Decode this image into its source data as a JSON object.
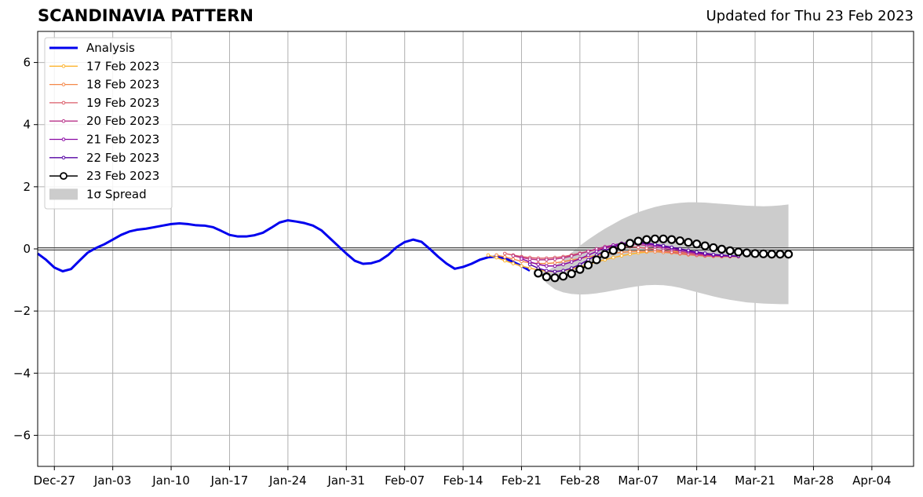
{
  "header": {
    "title": "SCANDINAVIA PATTERN",
    "updated": "Updated for Thu 23 Feb 2023"
  },
  "chart_data": {
    "type": "line",
    "title": "SCANDINAVIA PATTERN",
    "subtitle": "Updated for Thu 23 Feb 2023",
    "xlabel": "",
    "ylabel": "",
    "ylim": [
      -7,
      7
    ],
    "xlim": [
      "2022-12-25",
      "2023-04-09"
    ],
    "grid": true,
    "legend_position": "top-left",
    "x_ticks": [
      "Dec-27",
      "Jan-03",
      "Jan-10",
      "Jan-17",
      "Jan-24",
      "Jan-31",
      "Feb-07",
      "Feb-14",
      "Feb-21",
      "Feb-28",
      "Mar-07",
      "Mar-14",
      "Mar-21",
      "Mar-28",
      "Apr-04"
    ],
    "y_ticks": [
      "6",
      "4",
      "2",
      "0",
      "−2",
      "−4",
      "−6"
    ],
    "legend": [
      "Analysis",
      "17 Feb 2023",
      "18 Feb 2023",
      "19 Feb 2023",
      "20 Feb 2023",
      "21 Feb 2023",
      "22 Feb 2023",
      "23 Feb 2023",
      "1σ Spread"
    ],
    "colors": {
      "analysis": "#0000ee",
      "forecasts": [
        "#fdb42f",
        "#f48849",
        "#db5c68",
        "#b83289",
        "#8b0aa5",
        "#5402a3",
        "#000000"
      ],
      "spread": "#cccccc"
    },
    "analysis": {
      "name": "Analysis",
      "x": [
        "2022-12-25",
        "2022-12-26",
        "2022-12-27",
        "2022-12-28",
        "2022-12-29",
        "2022-12-30",
        "2022-12-31",
        "2023-01-01",
        "2023-01-02",
        "2023-01-03",
        "2023-01-04",
        "2023-01-05",
        "2023-01-06",
        "2023-01-07",
        "2023-01-08",
        "2023-01-09",
        "2023-01-10",
        "2023-01-11",
        "2023-01-12",
        "2023-01-13",
        "2023-01-14",
        "2023-01-15",
        "2023-01-16",
        "2023-01-17",
        "2023-01-18",
        "2023-01-19",
        "2023-01-20",
        "2023-01-21",
        "2023-01-22",
        "2023-01-23",
        "2023-01-24",
        "2023-01-25",
        "2023-01-26",
        "2023-01-27",
        "2023-01-28",
        "2023-01-29",
        "2023-01-30",
        "2023-01-31",
        "2023-02-01",
        "2023-02-02",
        "2023-02-03",
        "2023-02-04",
        "2023-02-05",
        "2023-02-06",
        "2023-02-07",
        "2023-02-08",
        "2023-02-09",
        "2023-02-10",
        "2023-02-11",
        "2023-02-12",
        "2023-02-13",
        "2023-02-14",
        "2023-02-15",
        "2023-02-16",
        "2023-02-17",
        "2023-02-18",
        "2023-02-19",
        "2023-02-20",
        "2023-02-21",
        "2023-02-22"
      ],
      "values": [
        -0.15,
        -0.35,
        -0.6,
        -0.72,
        -0.65,
        -0.38,
        -0.12,
        0.03,
        0.15,
        0.3,
        0.45,
        0.56,
        0.62,
        0.65,
        0.7,
        0.75,
        0.8,
        0.82,
        0.8,
        0.76,
        0.75,
        0.7,
        0.58,
        0.45,
        0.4,
        0.4,
        0.44,
        0.52,
        0.68,
        0.85,
        0.92,
        0.88,
        0.83,
        0.75,
        0.6,
        0.35,
        0.1,
        -0.15,
        -0.38,
        -0.48,
        -0.46,
        -0.38,
        -0.2,
        0.05,
        0.22,
        0.3,
        0.23,
        0.0,
        -0.25,
        -0.47,
        -0.64,
        -0.58,
        -0.48,
        -0.35,
        -0.27,
        -0.25,
        -0.3,
        -0.42,
        -0.55,
        -0.7
      ]
    },
    "forecasts": [
      {
        "name": "17 Feb 2023",
        "start": "2023-02-17",
        "values": [
          -0.2,
          -0.28,
          -0.38,
          -0.47,
          -0.55,
          -0.62,
          -0.68,
          -0.72,
          -0.73,
          -0.7,
          -0.65,
          -0.58,
          -0.5,
          -0.42,
          -0.35,
          -0.28,
          -0.22,
          -0.17,
          -0.13,
          -0.1,
          -0.08,
          -0.07,
          -0.08,
          -0.1,
          -0.13,
          -0.16,
          -0.19,
          -0.22,
          -0.24,
          -0.25
        ]
      },
      {
        "name": "18 Feb 2023",
        "start": "2023-02-18",
        "values": [
          -0.2,
          -0.26,
          -0.33,
          -0.4,
          -0.45,
          -0.47,
          -0.47,
          -0.45,
          -0.41,
          -0.36,
          -0.31,
          -0.26,
          -0.21,
          -0.17,
          -0.14,
          -0.11,
          -0.09,
          -0.08,
          -0.08,
          -0.09,
          -0.11,
          -0.13,
          -0.16,
          -0.19,
          -0.21,
          -0.23,
          -0.24,
          -0.25,
          -0.25,
          -0.25
        ]
      },
      {
        "name": "19 Feb 2023",
        "start": "2023-02-19",
        "values": [
          -0.15,
          -0.2,
          -0.25,
          -0.28,
          -0.3,
          -0.3,
          -0.28,
          -0.25,
          -0.2,
          -0.14,
          -0.08,
          -0.02,
          0.03,
          0.07,
          0.08,
          0.07,
          0.05,
          0.02,
          -0.02,
          -0.06,
          -0.1,
          -0.14,
          -0.17,
          -0.2,
          -0.22,
          -0.23,
          -0.24,
          -0.24,
          -0.24
        ]
      },
      {
        "name": "20 Feb 2023",
        "start": "2023-02-20",
        "values": [
          -0.22,
          -0.28,
          -0.33,
          -0.35,
          -0.35,
          -0.33,
          -0.29,
          -0.23,
          -0.16,
          -0.08,
          0.0,
          0.07,
          0.12,
          0.15,
          0.16,
          0.14,
          0.11,
          0.07,
          0.02,
          -0.03,
          -0.08,
          -0.12,
          -0.16,
          -0.19,
          -0.21,
          -0.22,
          -0.23,
          -0.23
        ]
      },
      {
        "name": "21 Feb 2023",
        "start": "2023-02-21",
        "values": [
          -0.32,
          -0.42,
          -0.5,
          -0.55,
          -0.55,
          -0.5,
          -0.42,
          -0.32,
          -0.2,
          -0.08,
          0.03,
          0.12,
          0.18,
          0.2,
          0.19,
          0.16,
          0.12,
          0.07,
          0.02,
          -0.03,
          -0.08,
          -0.13,
          -0.17,
          -0.2,
          -0.22,
          -0.23,
          -0.24
        ]
      },
      {
        "name": "22 Feb 2023",
        "start": "2023-02-22",
        "values": [
          -0.5,
          -0.62,
          -0.7,
          -0.73,
          -0.7,
          -0.62,
          -0.5,
          -0.35,
          -0.2,
          -0.06,
          0.06,
          0.15,
          0.2,
          0.21,
          0.19,
          0.15,
          0.1,
          0.05,
          0.0,
          -0.05,
          -0.1,
          -0.14,
          -0.18,
          -0.2,
          -0.22,
          -0.23
        ]
      },
      {
        "name": "23 Feb 2023",
        "start": "2023-02-23",
        "values": [
          -0.78,
          -0.9,
          -0.93,
          -0.88,
          -0.8,
          -0.66,
          -0.52,
          -0.35,
          -0.18,
          -0.05,
          0.07,
          0.18,
          0.25,
          0.3,
          0.32,
          0.32,
          0.3,
          0.26,
          0.21,
          0.16,
          0.1,
          0.04,
          -0.01,
          -0.06,
          -0.1,
          -0.13,
          -0.15,
          -0.16,
          -0.17,
          -0.17,
          -0.17
        ]
      }
    ],
    "spread": {
      "name": "1σ Spread",
      "start": "2023-02-23",
      "upper": [
        -0.78,
        -0.72,
        -0.55,
        -0.35,
        -0.12,
        0.1,
        0.3,
        0.48,
        0.65,
        0.8,
        0.95,
        1.07,
        1.18,
        1.27,
        1.35,
        1.41,
        1.45,
        1.48,
        1.5,
        1.5,
        1.49,
        1.47,
        1.45,
        1.43,
        1.41,
        1.39,
        1.38,
        1.37,
        1.38,
        1.4,
        1.43
      ],
      "lower": [
        -0.78,
        -1.1,
        -1.3,
        -1.4,
        -1.45,
        -1.47,
        -1.46,
        -1.43,
        -1.39,
        -1.34,
        -1.29,
        -1.24,
        -1.2,
        -1.17,
        -1.16,
        -1.17,
        -1.2,
        -1.25,
        -1.32,
        -1.39,
        -1.46,
        -1.53,
        -1.59,
        -1.64,
        -1.68,
        -1.72,
        -1.74,
        -1.76,
        -1.77,
        -1.78,
        -1.78
      ]
    }
  }
}
